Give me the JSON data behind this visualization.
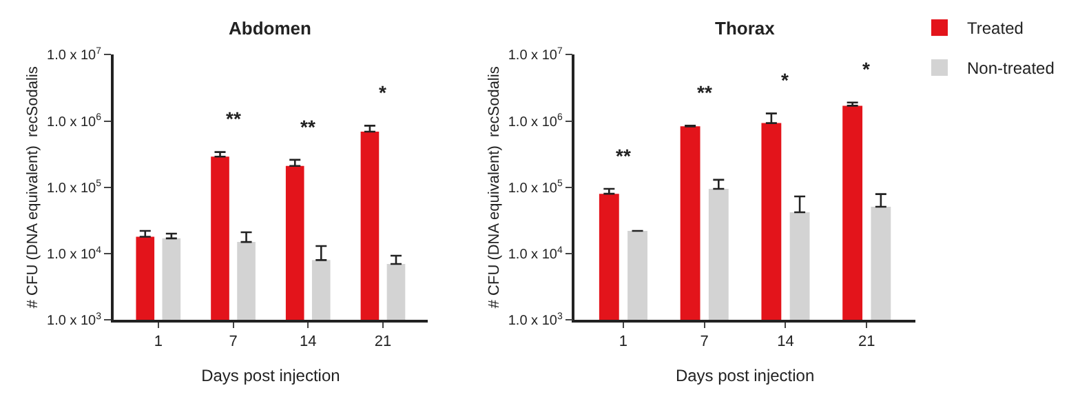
{
  "chart_data": [
    {
      "type": "bar",
      "title": "Abdomen",
      "xlabel": "Days post injection",
      "ylabel": "# CFU (DNA equivalent)  recSodalis",
      "categories": [
        "1",
        "7",
        "14",
        "21"
      ],
      "series": [
        {
          "name": "Treated",
          "color": "#e3141b",
          "values": [
            18000,
            290000,
            210000,
            690000
          ],
          "errors": [
            [
              18000,
              22000
            ],
            [
              290000,
              340000
            ],
            [
              210000,
              260000
            ],
            [
              690000,
              850000
            ]
          ]
        },
        {
          "name": "Non-treated",
          "color": "#d3d3d3",
          "values": [
            17000,
            15000,
            8000,
            7000
          ],
          "errors": [
            [
              17000,
              20000
            ],
            [
              15000,
              21000
            ],
            [
              8000,
              13000
            ],
            [
              7000,
              9300
            ]
          ]
        }
      ],
      "log": "y",
      "ylim": [
        1000,
        10000000
      ],
      "yticks": [
        {
          "value": 1000,
          "label": "1.0 x 10$^{3}$"
        },
        {
          "value": 10000,
          "label": "1.0 x 10$^{4}$"
        },
        {
          "value": 100000,
          "label": "1.0 x 10$^{5}$"
        },
        {
          "value": 1000000,
          "label": "1.0 x 10$^{6}$"
        },
        {
          "value": 10000000,
          "label": "1.0 x 10$^{7}$"
        }
      ],
      "legend": "top right",
      "annotations": [
        "**",
        "**",
        "*"
      ]
    },
    {
      "type": "bar",
      "title": "Thorax",
      "xlabel": "Days post injection",
      "ylabel": "# CFU (DNA equivalent)  recSodalis",
      "categories": [
        "1",
        "7",
        "14",
        "21"
      ],
      "series": [
        {
          "name": "Treated",
          "color": "#e3141b",
          "values": [
            80000,
            830000,
            930000,
            1700000
          ],
          "errors": [
            [
              80000,
              95000
            ],
            [
              830000,
              850000
            ],
            [
              930000,
              1300000
            ],
            [
              1700000,
              1900000
            ]
          ]
        },
        {
          "name": "Non-treated",
          "color": "#d3d3d3",
          "values": [
            22000,
            95000,
            42000,
            51000
          ],
          "errors": [
            [
              22000,
              22000
            ],
            [
              95000,
              130000
            ],
            [
              42000,
              73000
            ],
            [
              51000,
              79000
            ]
          ]
        }
      ],
      "log": "y",
      "ylim": [
        1000,
        10000000
      ],
      "yticks": [
        {
          "value": 1000,
          "label": "1.0 x 10$^{3}$"
        },
        {
          "value": 10000,
          "label": "1.0 x 10$^{4}$"
        },
        {
          "value": 100000,
          "label": "1.0 x 10$^{5}$"
        },
        {
          "value": 1000000,
          "label": "1.0 x 10$^{6}$"
        },
        {
          "value": 10000000,
          "label": "1.0 x 10$^{7}$"
        }
      ],
      "legend": "top right",
      "annotations": [
        "**",
        "**",
        "*",
        "*"
      ]
    }
  ]
}
